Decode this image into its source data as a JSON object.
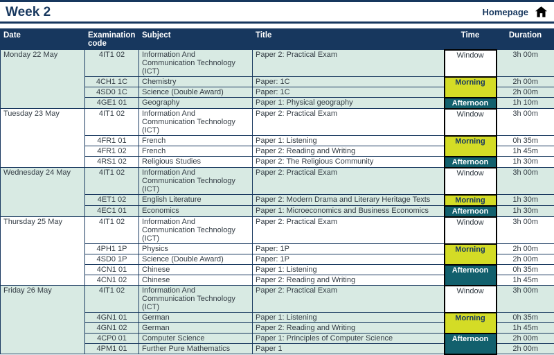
{
  "page": {
    "title": "Week 2",
    "homepage_label": "Homepage",
    "home_icon": "home-icon"
  },
  "colors": {
    "navy": "#17375e",
    "mint": "#d8eae3",
    "morning": "#d4dc26",
    "afternoon": "#12606d"
  },
  "table": {
    "headers": {
      "date": "Date",
      "code": "Examination code",
      "subject": "Subject",
      "title": "Title",
      "time": "Time",
      "duration": "Duration"
    },
    "days": [
      {
        "date": "Monday 22 May",
        "shaded": true,
        "exams": [
          {
            "code": "4IT1 02",
            "subject": "Information And Communication Technology (ICT)",
            "title": "Paper 2: Practical Exam",
            "time": {
              "label": "Window",
              "type": "window",
              "rowspan": 1
            },
            "duration": "3h 00m",
            "tall": true
          },
          {
            "code": "4CH1 1C",
            "subject": "Chemistry",
            "title": "Paper: 1C",
            "time": {
              "label": "Morning",
              "type": "morning",
              "rowspan": 2
            },
            "duration": "2h 00m"
          },
          {
            "code": "4SD0 1C",
            "subject": "Science (Double Award)",
            "title": "Paper: 1C",
            "duration": "2h 00m"
          },
          {
            "code": "4GE1 01",
            "subject": "Geography",
            "title": "Paper 1: Physical geography",
            "time": {
              "label": "Afternoon",
              "type": "afternoon",
              "rowspan": 1
            },
            "duration": "1h 10m"
          }
        ]
      },
      {
        "date": "Tuesday 23 May",
        "shaded": false,
        "exams": [
          {
            "code": "4IT1 02",
            "subject": "Information And Communication Technology (ICT)",
            "title": "Paper 2: Practical Exam",
            "time": {
              "label": "Window",
              "type": "window",
              "rowspan": 1
            },
            "duration": "3h 00m",
            "tall": true
          },
          {
            "code": "4FR1 01",
            "subject": "French",
            "title": "Paper 1: Listening",
            "time": {
              "label": "Morning",
              "type": "morning",
              "rowspan": 2
            },
            "duration": "0h 35m"
          },
          {
            "code": "4FR1 02",
            "subject": "French",
            "title": "Paper 2: Reading and Writing",
            "duration": "1h 45m"
          },
          {
            "code": "4RS1 02",
            "subject": "Religious Studies",
            "title": "Paper 2: The Religious Community",
            "time": {
              "label": "Afternoon",
              "type": "afternoon",
              "rowspan": 1
            },
            "duration": "1h 30m"
          }
        ]
      },
      {
        "date": "Wednesday 24 May",
        "shaded": true,
        "exams": [
          {
            "code": "4IT1 02",
            "subject": "Information And Communication Technology (ICT)",
            "title": "Paper 2: Practical Exam",
            "time": {
              "label": "Window",
              "type": "window",
              "rowspan": 1
            },
            "duration": "3h 00m",
            "tall": true
          },
          {
            "code": "4ET1 02",
            "subject": "English Literature",
            "title": "Paper 2: Modern Drama and Literary Heritage Texts",
            "time": {
              "label": "Morning",
              "type": "morning",
              "rowspan": 1
            },
            "duration": "1h 30m"
          },
          {
            "code": "4EC1 01",
            "subject": "Economics",
            "title": "Paper 1: Microeconomics and Business Economics",
            "time": {
              "label": "Afternoon",
              "type": "afternoon",
              "rowspan": 1
            },
            "duration": "1h 30m"
          }
        ]
      },
      {
        "date": "Thursday 25 May",
        "shaded": false,
        "exams": [
          {
            "code": "4IT1 02",
            "subject": "Information And Communication Technology (ICT)",
            "title": "Paper 2: Practical Exam",
            "time": {
              "label": "Window",
              "type": "window",
              "rowspan": 1
            },
            "duration": "3h 00m",
            "tall": true
          },
          {
            "code": "4PH1 1P",
            "subject": "Physics",
            "title": "Paper: 1P",
            "time": {
              "label": "Morning",
              "type": "morning",
              "rowspan": 2
            },
            "duration": "2h 00m"
          },
          {
            "code": "4SD0 1P",
            "subject": "Science (Double Award)",
            "title": "Paper: 1P",
            "duration": "2h 00m"
          },
          {
            "code": "4CN1 01",
            "subject": "Chinese",
            "title": "Paper 1: Listening",
            "time": {
              "label": "Afternoon",
              "type": "afternoon",
              "rowspan": 2
            },
            "duration": "0h 35m"
          },
          {
            "code": "4CN1 02",
            "subject": "Chinese",
            "title": "Paper 2: Reading and Writing",
            "duration": "1h 45m"
          }
        ]
      },
      {
        "date": "Friday 26 May",
        "shaded": true,
        "exams": [
          {
            "code": "4IT1 02",
            "subject": "Information And Communication Technology (ICT)",
            "title": "Paper 2: Practical Exam",
            "time": {
              "label": "Window",
              "type": "window",
              "rowspan": 1
            },
            "duration": "3h 00m",
            "tall": true
          },
          {
            "code": "4GN1 01",
            "subject": "German",
            "title": "Paper 1: Listening",
            "time": {
              "label": "Morning",
              "type": "morning",
              "rowspan": 2
            },
            "duration": "0h 35m"
          },
          {
            "code": "4GN1 02",
            "subject": "German",
            "title": "Paper 2: Reading and Writing",
            "duration": "1h 45m"
          },
          {
            "code": "4CP0 01",
            "subject": "Computer Science",
            "title": "Paper 1: Principles of Computer Science",
            "time": {
              "label": "Afternoon",
              "type": "afternoon",
              "rowspan": 2
            },
            "duration": "2h 00m"
          },
          {
            "code": "4PM1 01",
            "subject": "Further Pure Mathematics",
            "title": "Paper 1",
            "duration": "2h 00m"
          }
        ]
      }
    ]
  }
}
